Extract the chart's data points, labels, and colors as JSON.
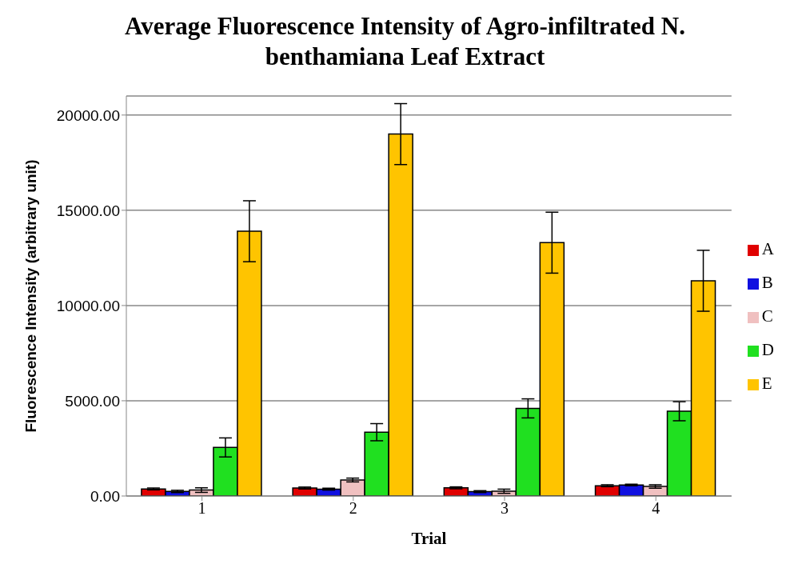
{
  "chart_data": {
    "type": "bar",
    "title": "Average Fluorescence Intensity of Agro-infiltrated N. benthamiana Leaf Extract",
    "xlabel": "Trial",
    "ylabel": "Fluorescence Intensity (arbitrary unit)",
    "categories": [
      "1",
      "2",
      "3",
      "4"
    ],
    "series": [
      {
        "name": "A",
        "color": "#e00000",
        "values": [
          370,
          420,
          430,
          540
        ],
        "errors": [
          50,
          50,
          50,
          50
        ]
      },
      {
        "name": "B",
        "color": "#1010e0",
        "values": [
          240,
          360,
          230,
          580
        ],
        "errors": [
          60,
          50,
          50,
          40
        ]
      },
      {
        "name": "C",
        "color": "#f0c0c0",
        "values": [
          310,
          840,
          250,
          500
        ],
        "errors": [
          120,
          100,
          110,
          90
        ]
      },
      {
        "name": "D",
        "color": "#20e020",
        "values": [
          2550,
          3350,
          4600,
          4450
        ],
        "errors": [
          500,
          450,
          500,
          500
        ]
      },
      {
        "name": "E",
        "color": "#ffc400",
        "values": [
          13900,
          19000,
          13300,
          11300
        ],
        "errors": [
          1600,
          1600,
          1600,
          1600
        ]
      }
    ],
    "ylim": [
      0,
      21000
    ],
    "yticks": [
      {
        "value": 0,
        "label": "0.00"
      },
      {
        "value": 5000,
        "label": "5000.00"
      },
      {
        "value": 10000,
        "label": "10000.00"
      },
      {
        "value": 15000,
        "label": "15000.00"
      },
      {
        "value": 20000,
        "label": "20000.00"
      }
    ],
    "grid": "y",
    "legend": "right"
  }
}
